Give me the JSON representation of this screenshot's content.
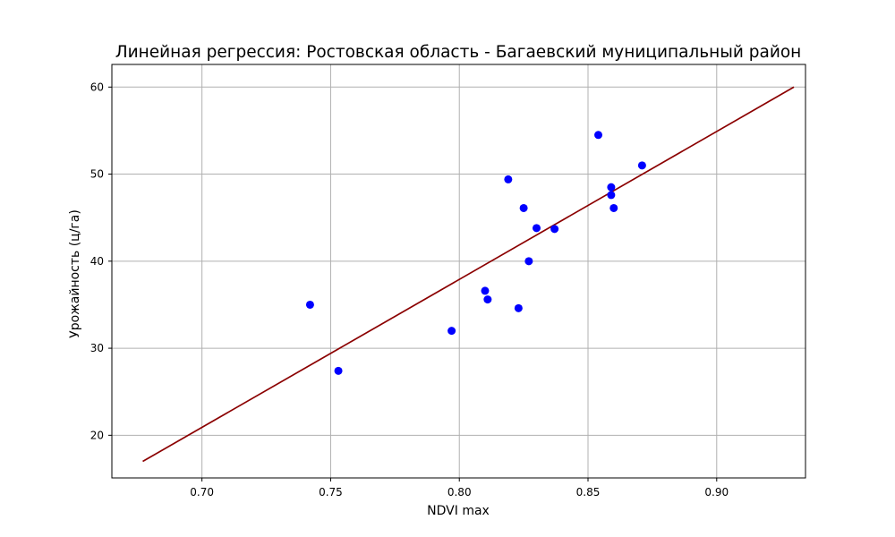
{
  "chart_data": {
    "type": "scatter",
    "title": "Линейная регрессия: Ростовская область - Багаевский муниципальный район",
    "xlabel": "NDVI max",
    "ylabel": "Урожайность (ц/га)",
    "xlim": [
      0.665,
      0.9345
    ],
    "ylim": [
      15.1,
      62.6
    ],
    "xticks": [
      0.7,
      0.75,
      0.8,
      0.85,
      0.9
    ],
    "xtick_labels": [
      "0.70",
      "0.75",
      "0.80",
      "0.85",
      "0.90"
    ],
    "yticks": [
      20,
      30,
      40,
      50,
      60
    ],
    "ytick_labels": [
      "20",
      "30",
      "40",
      "50",
      "60"
    ],
    "grid": true,
    "points": [
      {
        "x": 0.742,
        "y": 35.0
      },
      {
        "x": 0.753,
        "y": 27.4
      },
      {
        "x": 0.797,
        "y": 32.0
      },
      {
        "x": 0.81,
        "y": 36.6
      },
      {
        "x": 0.811,
        "y": 35.6
      },
      {
        "x": 0.819,
        "y": 49.4
      },
      {
        "x": 0.823,
        "y": 34.6
      },
      {
        "x": 0.825,
        "y": 46.1
      },
      {
        "x": 0.827,
        "y": 40.0
      },
      {
        "x": 0.83,
        "y": 43.8
      },
      {
        "x": 0.837,
        "y": 43.7
      },
      {
        "x": 0.854,
        "y": 54.5
      },
      {
        "x": 0.859,
        "y": 48.5
      },
      {
        "x": 0.859,
        "y": 47.6
      },
      {
        "x": 0.86,
        "y": 46.1
      },
      {
        "x": 0.871,
        "y": 51.0
      }
    ],
    "regression_line": {
      "x": [
        0.677,
        0.93
      ],
      "y": [
        17.0,
        60.0
      ]
    },
    "colors": {
      "points": "#0000ff",
      "line": "#8b0000",
      "grid": "#b0b0b0"
    }
  }
}
